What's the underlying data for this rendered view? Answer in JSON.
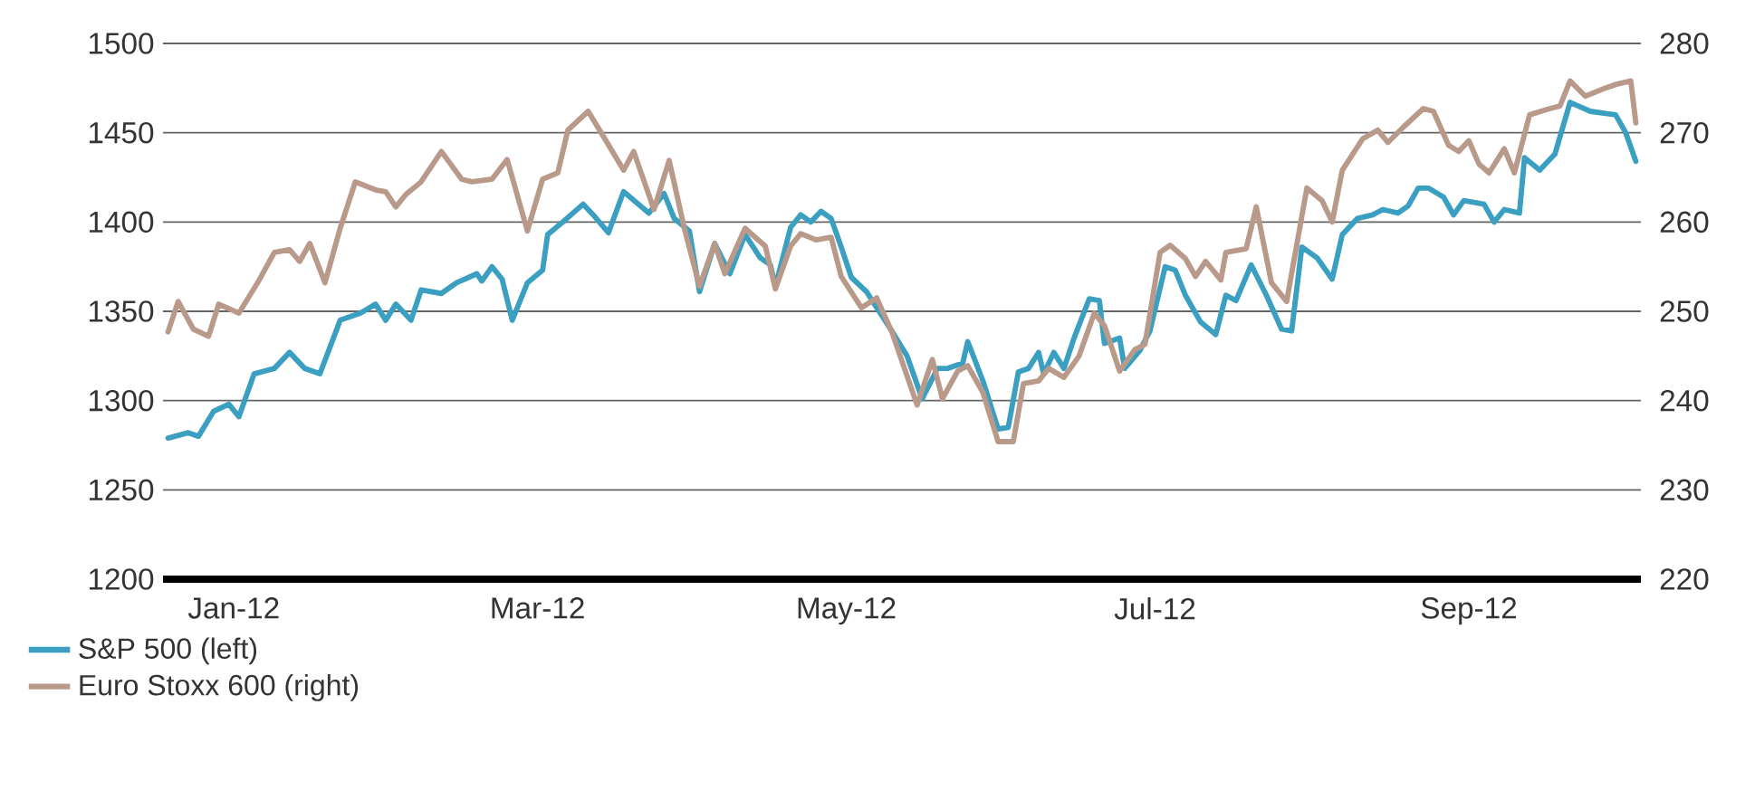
{
  "chart_data": {
    "type": "line",
    "xlim": [
      "2012-01-01",
      "2012-10-19"
    ],
    "xticks": [
      {
        "value": "2012-01-15",
        "label": "Jan-12"
      },
      {
        "value": "2012-03-15",
        "label": "Mar-12"
      },
      {
        "value": "2012-05-15",
        "label": "May-12"
      },
      {
        "value": "2012-07-15",
        "label": "Jul-12"
      },
      {
        "value": "2012-09-15",
        "label": "Sep-12"
      }
    ],
    "ylim": [
      1200,
      1500
    ],
    "yticks": [
      1200,
      1250,
      1300,
      1350,
      1400,
      1450,
      1500
    ],
    "y2lim": [
      220,
      280
    ],
    "y2ticks": [
      220,
      230,
      240,
      250,
      260,
      270,
      280
    ],
    "grid": "y",
    "legend": "bottom",
    "line_style": "solid",
    "series": [
      {
        "name": "S&P 500 (left)",
        "color": "#3a9fc0",
        "axis": "y",
        "x": [
          "2012-01-02",
          "2012-01-06",
          "2012-01-08",
          "2012-01-11",
          "2012-01-14",
          "2012-01-16",
          "2012-01-19",
          "2012-01-23",
          "2012-01-26",
          "2012-01-29",
          "2012-02-01",
          "2012-02-05",
          "2012-02-09",
          "2012-02-12",
          "2012-02-14",
          "2012-02-16",
          "2012-02-19",
          "2012-02-21",
          "2012-02-25",
          "2012-02-28",
          "2012-03-03",
          "2012-03-04",
          "2012-03-06",
          "2012-03-08",
          "2012-03-10",
          "2012-03-13",
          "2012-03-16",
          "2012-03-17",
          "2012-03-20",
          "2012-03-24",
          "2012-03-26",
          "2012-03-29",
          "2012-04-01",
          "2012-04-06",
          "2012-04-09",
          "2012-04-11",
          "2012-04-14",
          "2012-04-16",
          "2012-04-19",
          "2012-04-22",
          "2012-04-25",
          "2012-04-28",
          "2012-04-30",
          "2012-05-01",
          "2012-05-04",
          "2012-05-06",
          "2012-05-08",
          "2012-05-10",
          "2012-05-12",
          "2012-05-14",
          "2012-05-16",
          "2012-05-19",
          "2012-05-21",
          "2012-05-24",
          "2012-05-27",
          "2012-05-30",
          "2012-06-02",
          "2012-06-04",
          "2012-06-07",
          "2012-06-08",
          "2012-06-11",
          "2012-06-14",
          "2012-06-16",
          "2012-06-18",
          "2012-06-20",
          "2012-06-22",
          "2012-06-23",
          "2012-06-25",
          "2012-06-27",
          "2012-06-29",
          "2012-07-02",
          "2012-07-04",
          "2012-07-05",
          "2012-07-08",
          "2012-07-09",
          "2012-07-12",
          "2012-07-14",
          "2012-07-17",
          "2012-07-19",
          "2012-07-21",
          "2012-07-24",
          "2012-07-27",
          "2012-07-29",
          "2012-07-31",
          "2012-08-03",
          "2012-08-06",
          "2012-08-09",
          "2012-08-11",
          "2012-08-13",
          "2012-08-16",
          "2012-08-19",
          "2012-08-21",
          "2012-08-24",
          "2012-08-27",
          "2012-08-29",
          "2012-09-01",
          "2012-09-03",
          "2012-09-05",
          "2012-09-07",
          "2012-09-10",
          "2012-09-12",
          "2012-09-14",
          "2012-09-18",
          "2012-09-20",
          "2012-09-22",
          "2012-09-25",
          "2012-09-26",
          "2012-09-29",
          "2012-10-02",
          "2012-10-05",
          "2012-10-09",
          "2012-10-14",
          "2012-10-16",
          "2012-10-18"
        ],
        "values": [
          1279,
          1282,
          1280,
          1294,
          1298,
          1291,
          1315,
          1318,
          1327,
          1318,
          1315,
          1345,
          1349,
          1354,
          1345,
          1354,
          1345,
          1362,
          1360,
          1366,
          1371,
          1367,
          1375,
          1368,
          1345,
          1366,
          1373,
          1393,
          1400,
          1410,
          1404,
          1394,
          1417,
          1405,
          1416,
          1402,
          1395,
          1361,
          1388,
          1371,
          1393,
          1380,
          1376,
          1364,
          1397,
          1404,
          1400,
          1406,
          1402,
          1386,
          1369,
          1361,
          1352,
          1339,
          1325,
          1301,
          1318,
          1318,
          1321,
          1333,
          1311,
          1284,
          1285,
          1316,
          1318,
          1327,
          1315,
          1327,
          1318,
          1335,
          1357,
          1356,
          1332,
          1335,
          1318,
          1328,
          1339,
          1375,
          1373,
          1359,
          1344,
          1337,
          1359,
          1356,
          1376,
          1359,
          1340,
          1339,
          1386,
          1380,
          1368,
          1393,
          1402,
          1404,
          1407,
          1405,
          1409,
          1419,
          1419,
          1414,
          1404,
          1412,
          1410,
          1400,
          1407,
          1405,
          1436,
          1429,
          1438,
          1467,
          1462,
          1460,
          1450,
          1434
        ]
      },
      {
        "name": "Euro Stoxx 600 (right)",
        "color": "#b8998a",
        "axis": "y2",
        "x": [
          "2012-01-02",
          "2012-01-04",
          "2012-01-07",
          "2012-01-10",
          "2012-01-12",
          "2012-01-16",
          "2012-01-20",
          "2012-01-23",
          "2012-01-26",
          "2012-01-28",
          "2012-01-30",
          "2012-02-02",
          "2012-02-05",
          "2012-02-08",
          "2012-02-12",
          "2012-02-14",
          "2012-02-16",
          "2012-02-18",
          "2012-02-21",
          "2012-02-25",
          "2012-02-29",
          "2012-03-02",
          "2012-03-06",
          "2012-03-09",
          "2012-03-13",
          "2012-03-16",
          "2012-03-19",
          "2012-03-21",
          "2012-03-25",
          "2012-03-28",
          "2012-04-01",
          "2012-04-03",
          "2012-04-07",
          "2012-04-10",
          "2012-04-13",
          "2012-04-16",
          "2012-04-19",
          "2012-04-21",
          "2012-04-25",
          "2012-04-29",
          "2012-05-01",
          "2012-05-04",
          "2012-05-06",
          "2012-05-09",
          "2012-05-12",
          "2012-05-14",
          "2012-05-18",
          "2012-05-21",
          "2012-05-24",
          "2012-05-29",
          "2012-06-01",
          "2012-06-03",
          "2012-06-06",
          "2012-06-08",
          "2012-06-11",
          "2012-06-14",
          "2012-06-17",
          "2012-06-19",
          "2012-06-22",
          "2012-06-24",
          "2012-06-27",
          "2012-06-30",
          "2012-07-03",
          "2012-07-05",
          "2012-07-08",
          "2012-07-11",
          "2012-07-13",
          "2012-07-16",
          "2012-07-18",
          "2012-07-21",
          "2012-07-23",
          "2012-07-25",
          "2012-07-28",
          "2012-07-29",
          "2012-08-02",
          "2012-08-04",
          "2012-08-07",
          "2012-08-10",
          "2012-08-14",
          "2012-08-17",
          "2012-08-19",
          "2012-08-21",
          "2012-08-25",
          "2012-08-28",
          "2012-08-30",
          "2012-09-02",
          "2012-09-06",
          "2012-09-08",
          "2012-09-11",
          "2012-09-13",
          "2012-09-15",
          "2012-09-17",
          "2012-09-19",
          "2012-09-22",
          "2012-09-24",
          "2012-09-27",
          "2012-10-01",
          "2012-10-03",
          "2012-10-05",
          "2012-10-08",
          "2012-10-12",
          "2012-10-14",
          "2012-10-17",
          "2012-10-18"
        ],
        "values": [
          247.7,
          251.1,
          248.0,
          247.2,
          250.8,
          249.8,
          253.5,
          256.6,
          256.9,
          255.6,
          257.6,
          253.2,
          259.3,
          264.5,
          263.6,
          263.4,
          261.7,
          263.1,
          264.5,
          267.9,
          264.8,
          264.5,
          264.8,
          267.0,
          259.0,
          264.8,
          265.5,
          270.3,
          272.4,
          269.6,
          265.8,
          267.9,
          261.4,
          266.9,
          259.3,
          252.8,
          257.6,
          254.2,
          259.3,
          257.3,
          252.5,
          257.3,
          258.7,
          258.0,
          258.3,
          253.9,
          250.4,
          251.5,
          247.7,
          239.5,
          244.6,
          240.2,
          243.3,
          243.9,
          240.9,
          235.4,
          235.4,
          241.9,
          242.2,
          243.6,
          242.6,
          245.0,
          249.8,
          248.4,
          243.3,
          245.7,
          246.3,
          256.6,
          257.4,
          255.9,
          253.9,
          255.6,
          253.5,
          256.6,
          257.0,
          261.7,
          253.2,
          251.1,
          263.8,
          262.4,
          260.0,
          265.8,
          269.3,
          270.3,
          268.9,
          270.6,
          272.7,
          272.4,
          268.6,
          267.9,
          269.1,
          266.5,
          265.5,
          268.2,
          265.5,
          272.0,
          272.7,
          273.0,
          275.8,
          274.1,
          275.0,
          275.4,
          275.8,
          271.1
        ]
      }
    ]
  }
}
